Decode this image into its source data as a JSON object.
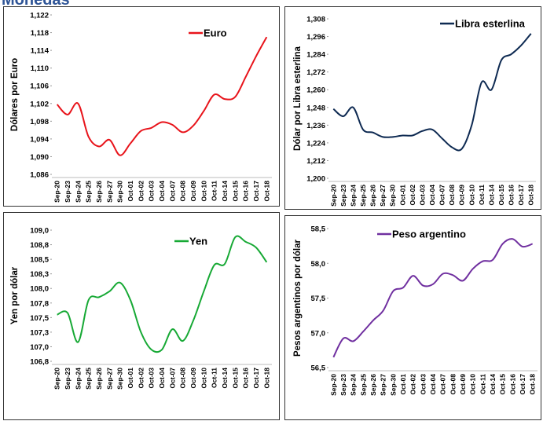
{
  "title": "Monedas",
  "chart_data": [
    {
      "type": "line",
      "ylabel": "Dólares por Euro",
      "categories": [
        "Sep-20",
        "Sep-23",
        "Sep-24",
        "Sep-25",
        "Sep-26",
        "Sep-27",
        "Sep-30",
        "Oct-01",
        "Oct-02",
        "Oct-03",
        "Oct-04",
        "Oct-07",
        "Oct-08",
        "Oct-09",
        "Oct-10",
        "Oct-11",
        "Oct-14",
        "Oct-15",
        "Oct-16",
        "Oct-17",
        "Oct-18"
      ],
      "series": [
        {
          "name": "Euro",
          "color": "#e8141b",
          "values": [
            1.1018,
            1.0995,
            1.102,
            1.0945,
            1.0923,
            1.0938,
            1.0903,
            1.093,
            1.0958,
            1.0965,
            1.0978,
            1.0972,
            1.0955,
            1.097,
            1.1003,
            1.104,
            1.103,
            1.1035,
            1.108,
            1.1127,
            1.117
          ]
        }
      ],
      "ylim": [
        1.086,
        1.122
      ],
      "yticks": [
        {
          "value": 1.086,
          "label": "1,086"
        },
        {
          "value": 1.09,
          "label": "1,090"
        },
        {
          "value": 1.094,
          "label": "1,094"
        },
        {
          "value": 1.098,
          "label": "1,098"
        },
        {
          "value": 1.102,
          "label": "1,102"
        },
        {
          "value": 1.106,
          "label": "1,106"
        },
        {
          "value": 1.11,
          "label": "1,110"
        },
        {
          "value": 1.114,
          "label": "1,114"
        },
        {
          "value": 1.118,
          "label": "1,118"
        },
        {
          "value": 1.122,
          "label": "1,122"
        }
      ]
    },
    {
      "type": "line",
      "ylabel": "Dólar por Libra esterlina",
      "categories": [
        "Sep-20",
        "Sep-23",
        "Sep-24",
        "Sep-25",
        "Sep-26",
        "Sep-27",
        "Sep-30",
        "Oct-01",
        "Oct-02",
        "Oct-03",
        "Oct-04",
        "Oct-07",
        "Oct-08",
        "Oct-09",
        "Oct-10",
        "Oct-11",
        "Oct-14",
        "Oct-15",
        "Oct-16",
        "Oct-17",
        "Oct-18"
      ],
      "series": [
        {
          "name": "Libra esterlina",
          "color": "#0e2a52",
          "values": [
            1.247,
            1.242,
            1.248,
            1.233,
            1.231,
            1.228,
            1.228,
            1.229,
            1.229,
            1.232,
            1.233,
            1.227,
            1.221,
            1.22,
            1.236,
            1.265,
            1.26,
            1.28,
            1.284,
            1.29,
            1.298
          ]
        }
      ],
      "ylim": [
        1.2,
        1.308
      ],
      "yticks": [
        {
          "value": 1.2,
          "label": "1,200"
        },
        {
          "value": 1.212,
          "label": "1,212"
        },
        {
          "value": 1.224,
          "label": "1,224"
        },
        {
          "value": 1.236,
          "label": "1,236"
        },
        {
          "value": 1.248,
          "label": "1,248"
        },
        {
          "value": 1.26,
          "label": "1,260"
        },
        {
          "value": 1.272,
          "label": "1,272"
        },
        {
          "value": 1.284,
          "label": "1,284"
        },
        {
          "value": 1.296,
          "label": "1,296"
        },
        {
          "value": 1.308,
          "label": "1,308"
        }
      ]
    },
    {
      "type": "line",
      "ylabel": "Yen por dólar",
      "categories": [
        "Sep-20",
        "Sep-23",
        "Sep-24",
        "Sep-25",
        "Sep-26",
        "Sep-27",
        "Sep-30",
        "Oct-01",
        "Oct-02",
        "Oct-03",
        "Oct-04",
        "Oct-07",
        "Oct-08",
        "Oct-09",
        "Oct-10",
        "Oct-11",
        "Oct-14",
        "Oct-15",
        "Oct-16",
        "Oct-17",
        "Oct-18"
      ],
      "series": [
        {
          "name": "Yen",
          "color": "#17a935",
          "values": [
            107.55,
            107.58,
            107.08,
            107.8,
            107.85,
            107.95,
            108.1,
            107.8,
            107.25,
            106.95,
            106.95,
            107.3,
            107.1,
            107.45,
            107.95,
            108.4,
            108.42,
            108.88,
            108.8,
            108.7,
            108.45
          ]
        }
      ],
      "ylim": [
        106.75,
        109
      ],
      "yticks": [
        {
          "value": 106.75,
          "label": "106,8"
        },
        {
          "value": 107,
          "label": "107,0"
        },
        {
          "value": 107.25,
          "label": "107,3"
        },
        {
          "value": 107.5,
          "label": "107,5"
        },
        {
          "value": 107.75,
          "label": "107,8"
        },
        {
          "value": 108,
          "label": "108,0"
        },
        {
          "value": 108.25,
          "label": "108,3"
        },
        {
          "value": 108.5,
          "label": "108,5"
        },
        {
          "value": 108.75,
          "label": "108,8"
        },
        {
          "value": 109,
          "label": "109,0"
        }
      ]
    },
    {
      "type": "line",
      "ylabel": "Pesos argentinos por dólar",
      "categories": [
        "Sep-20",
        "Sep-23",
        "Sep-24",
        "Sep-25",
        "Sep-26",
        "Sep-27",
        "Sep-30",
        "Oct-01",
        "Oct-02",
        "Oct-03",
        "Oct-04",
        "Oct-07",
        "Oct-08",
        "Oct-09",
        "Oct-10",
        "Oct-11",
        "Oct-14",
        "Oct-15",
        "Oct-16",
        "Oct-17",
        "Oct-18"
      ],
      "series": [
        {
          "name": "Peso argentino",
          "color": "#7030a0",
          "values": [
            56.65,
            56.92,
            56.88,
            57.02,
            57.18,
            57.32,
            57.6,
            57.65,
            57.82,
            57.68,
            57.7,
            57.85,
            57.83,
            57.75,
            57.92,
            58.03,
            58.05,
            58.28,
            58.35,
            58.24,
            58.28
          ]
        }
      ],
      "ylim": [
        56.5,
        58.5
      ],
      "yticks": [
        {
          "value": 56.5,
          "label": "56,5"
        },
        {
          "value": 57,
          "label": "57,0"
        },
        {
          "value": 57.5,
          "label": "57,5"
        },
        {
          "value": 58,
          "label": "58,0"
        },
        {
          "value": 58.5,
          "label": "58,5"
        }
      ]
    }
  ]
}
